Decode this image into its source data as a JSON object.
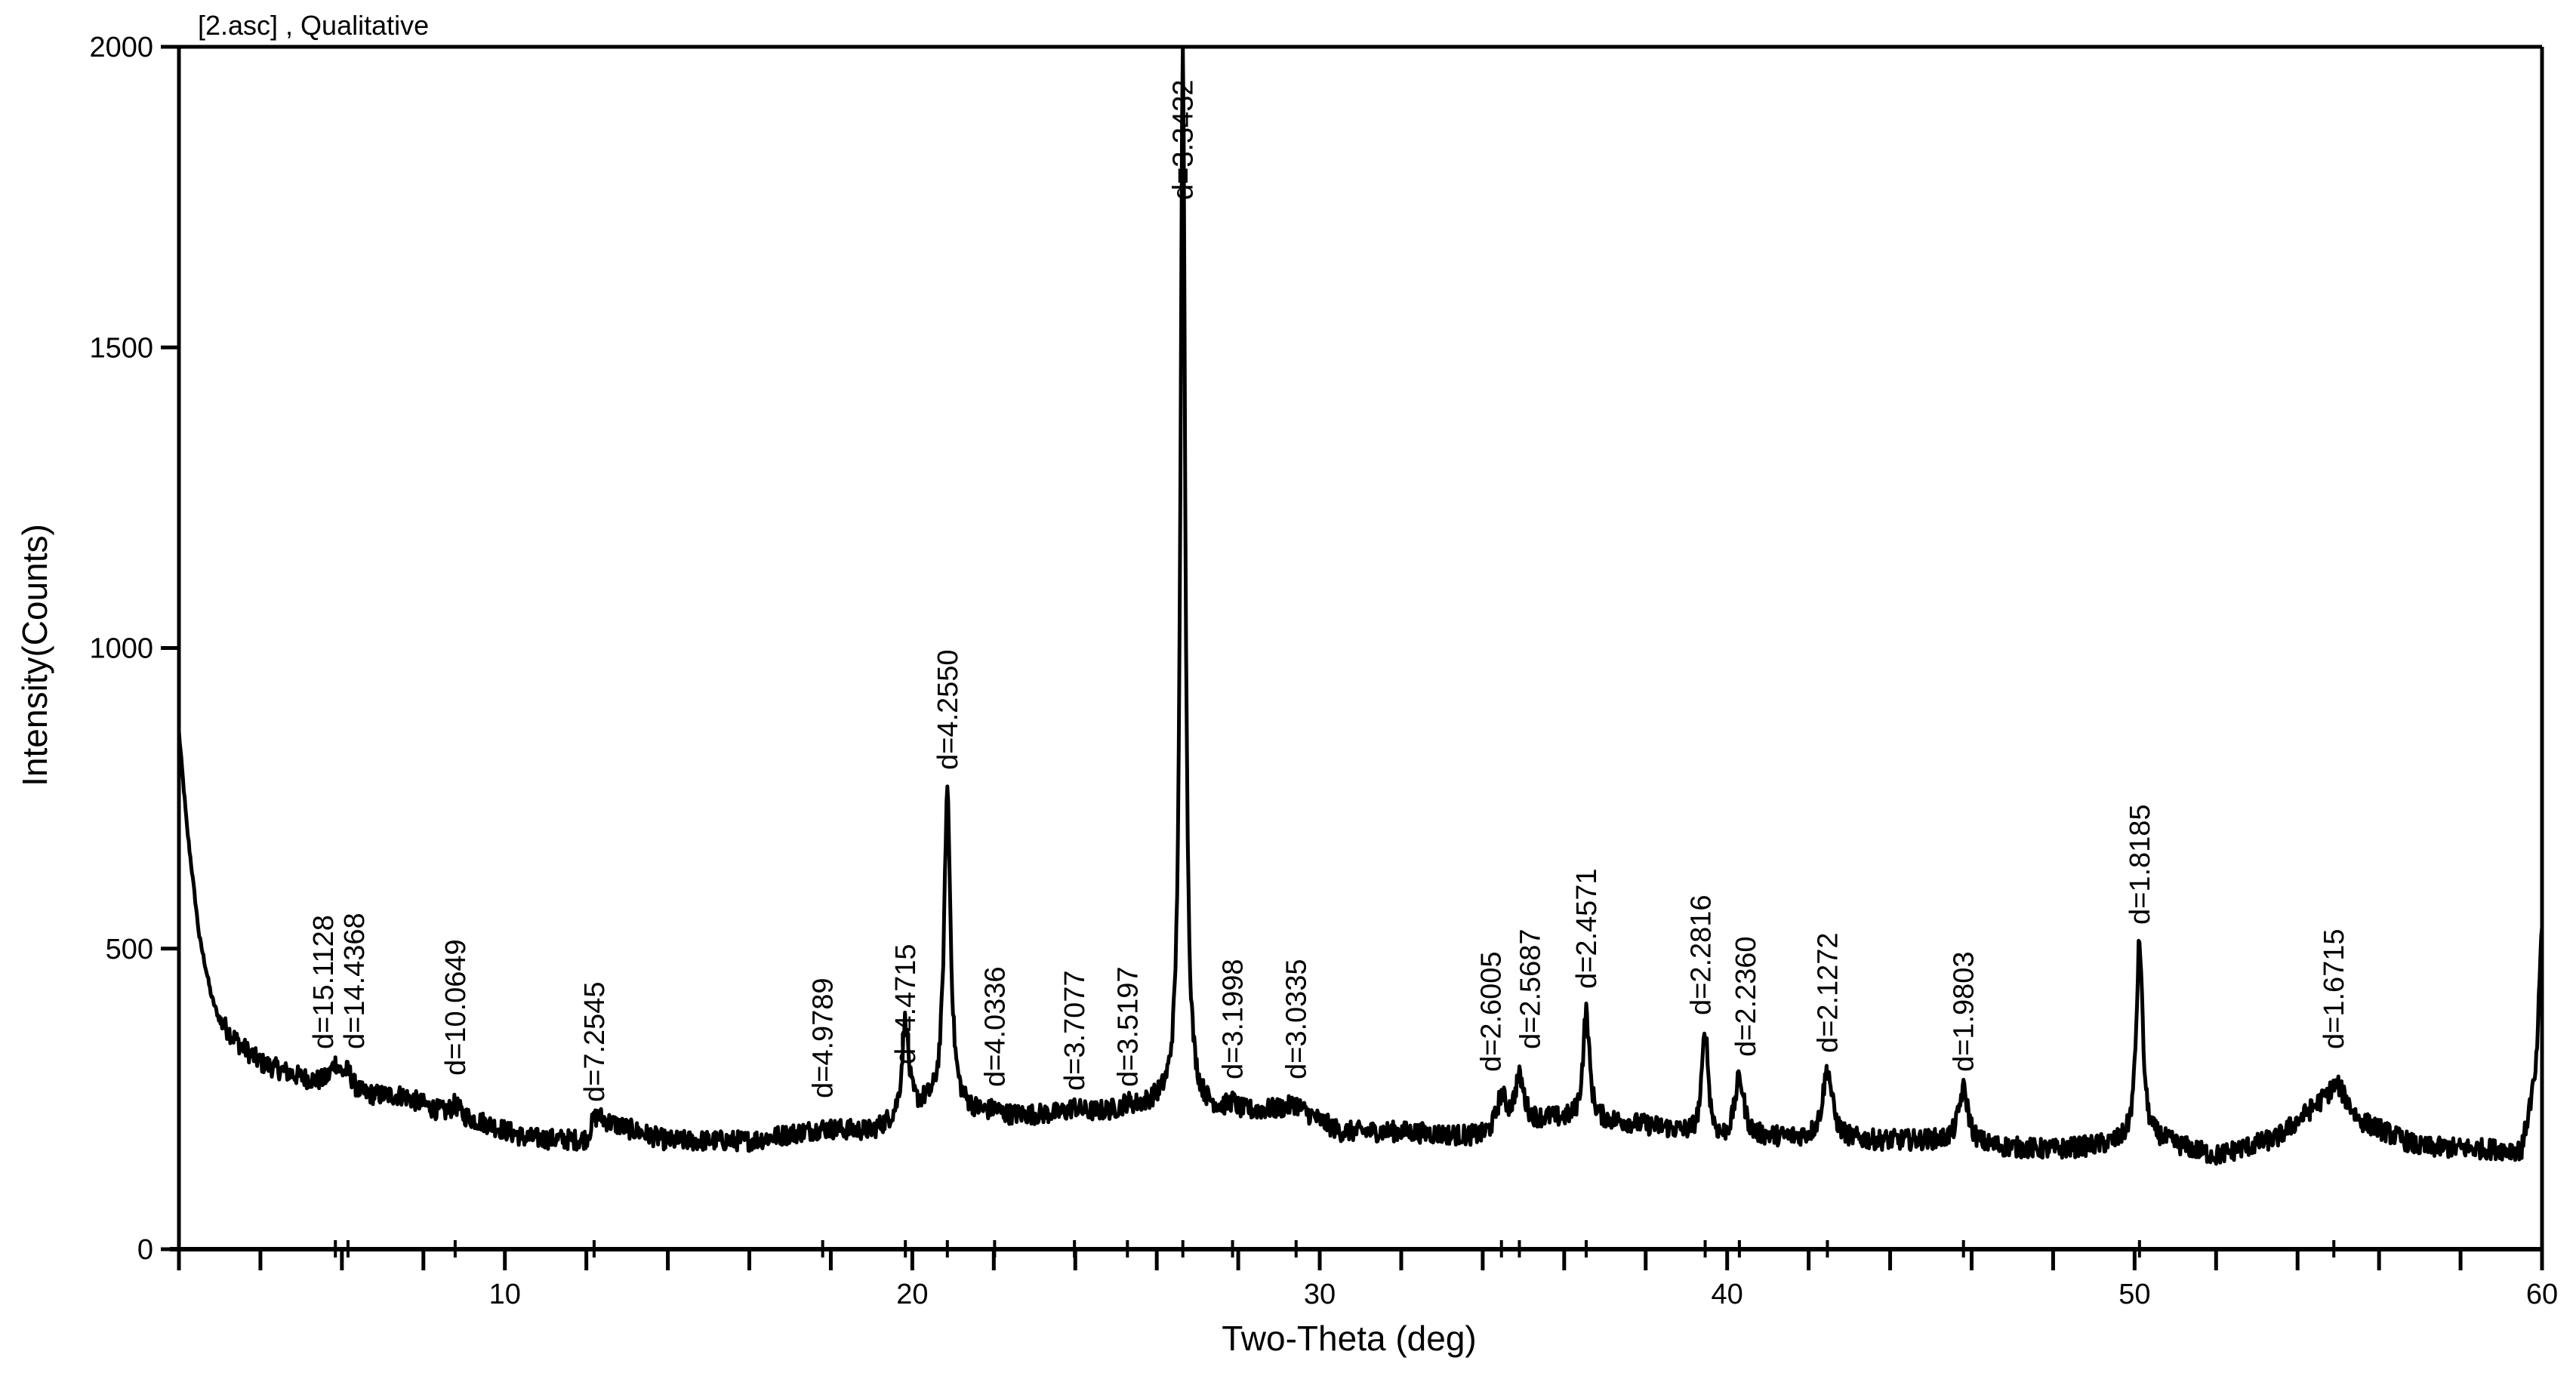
{
  "chart_data": {
    "type": "line",
    "title": "[2.asc] , Qualitative",
    "xlabel": "Two-Theta (deg)",
    "ylabel": "Intensity(Counts)",
    "xlim": [
      2,
      60
    ],
    "ylim": [
      0,
      2000
    ],
    "grid": false,
    "legend": null,
    "x_ticks": [
      10,
      20,
      30,
      40,
      50,
      60
    ],
    "x_tick_labels": [
      "10",
      "20",
      "30",
      "40",
      "50",
      "60"
    ],
    "y_ticks": [
      0,
      500,
      1000,
      1500,
      2000
    ],
    "y_tick_labels": [
      "0",
      "500",
      "1000",
      "1500",
      "2000"
    ],
    "series": [
      {
        "name": "2.asc",
        "color": "#000000",
        "points_approx": [
          [
            2.0,
            860
          ],
          [
            2.2,
            700
          ],
          [
            2.5,
            520
          ],
          [
            2.8,
            420
          ],
          [
            3.0,
            380
          ],
          [
            3.5,
            340
          ],
          [
            4.0,
            310
          ],
          [
            5.0,
            285
          ],
          [
            5.8,
            305
          ],
          [
            6.5,
            255
          ],
          [
            7.5,
            255
          ],
          [
            8.5,
            225
          ],
          [
            9.5,
            210
          ],
          [
            10.5,
            185
          ],
          [
            12.0,
            180
          ],
          [
            12.3,
            215
          ],
          [
            14.0,
            180
          ],
          [
            16.0,
            180
          ],
          [
            17.8,
            200
          ],
          [
            19.0,
            195
          ],
          [
            19.83,
            379
          ],
          [
            20.3,
            235
          ],
          [
            20.85,
            763
          ],
          [
            21.3,
            230
          ],
          [
            22.0,
            220
          ],
          [
            24.0,
            225
          ],
          [
            25.3,
            230
          ],
          [
            26.0,
            240
          ],
          [
            26.64,
            2000
          ],
          [
            27.2,
            230
          ],
          [
            28.0,
            225
          ],
          [
            29.4,
            235
          ],
          [
            30.5,
            195
          ],
          [
            32.0,
            195
          ],
          [
            34.0,
            185
          ],
          [
            34.93,
            282
          ],
          [
            35.6,
            215
          ],
          [
            36.54,
            395
          ],
          [
            37.5,
            210
          ],
          [
            38.5,
            200
          ],
          [
            39.46,
            362
          ],
          [
            39.9,
            175
          ],
          [
            40.28,
            282
          ],
          [
            41.0,
            185
          ],
          [
            42.44,
            298
          ],
          [
            43.5,
            180
          ],
          [
            45.0,
            180
          ],
          [
            45.78,
            266
          ],
          [
            46.5,
            170
          ],
          [
            48.0,
            165
          ],
          [
            50.11,
            511
          ],
          [
            50.6,
            180
          ],
          [
            52.0,
            155
          ],
          [
            53.5,
            185
          ],
          [
            54.99,
            270
          ],
          [
            55.5,
            215
          ],
          [
            57.0,
            170
          ],
          [
            59.5,
            165
          ],
          [
            60.0,
            350
          ]
        ]
      }
    ],
    "peaks": [
      {
        "two_theta": 5.84,
        "d": "15.1128",
        "intensity": 305
      },
      {
        "two_theta": 6.15,
        "d": "14.4368",
        "intensity": 290
      },
      {
        "two_theta": 8.78,
        "d": "10.0649",
        "intensity": 240
      },
      {
        "two_theta": 12.19,
        "d": "7.2545",
        "intensity": 215
      },
      {
        "two_theta": 17.8,
        "d": "4.9789",
        "intensity": 200
      },
      {
        "two_theta": 19.83,
        "d": "4.4715",
        "intensity": 379
      },
      {
        "two_theta": 20.86,
        "d": "4.2550",
        "intensity": 763
      },
      {
        "two_theta": 22.02,
        "d": "4.0336",
        "intensity": 230
      },
      {
        "two_theta": 23.98,
        "d": "3.7077",
        "intensity": 235
      },
      {
        "two_theta": 25.28,
        "d": "3.5197",
        "intensity": 240
      },
      {
        "two_theta": 26.64,
        "d": "3.3432",
        "intensity": 2000
      },
      {
        "two_theta": 27.86,
        "d": "3.1998",
        "intensity": 240
      },
      {
        "two_theta": 29.42,
        "d": "3.0335",
        "intensity": 240
      },
      {
        "two_theta": 34.46,
        "d": "2.6005",
        "intensity": 250
      },
      {
        "two_theta": 34.9,
        "d": "2.5687",
        "intensity": 282
      },
      {
        "two_theta": 36.54,
        "d": "2.4571",
        "intensity": 395
      },
      {
        "two_theta": 39.46,
        "d": "2.2816",
        "intensity": 362
      },
      {
        "two_theta": 40.3,
        "d": "2.2360",
        "intensity": 282
      },
      {
        "two_theta": 42.46,
        "d": "2.1272",
        "intensity": 298
      },
      {
        "two_theta": 45.8,
        "d": "1.9803",
        "intensity": 266
      },
      {
        "two_theta": 50.12,
        "d": "1.8185",
        "intensity": 511
      },
      {
        "two_theta": 54.89,
        "d": "1.6715",
        "intensity": 270
      }
    ]
  },
  "header": {
    "title": "[2.asc] , Qualitative"
  },
  "axes": {
    "x_title": "Two-Theta (deg)",
    "y_title": "Intensity(Counts)"
  }
}
